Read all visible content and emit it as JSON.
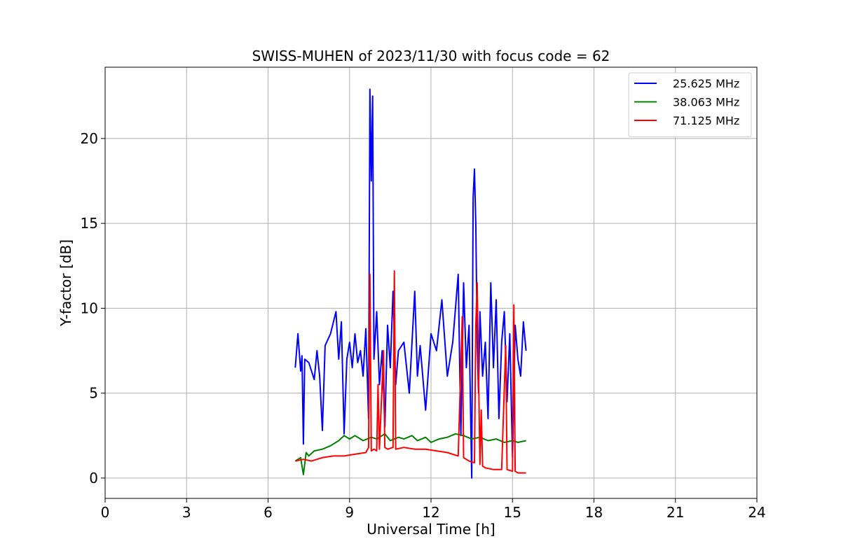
{
  "chart_data": {
    "type": "line",
    "title": "SWISS-MUHEN of 2023/11/30 with focus code = 62",
    "xlabel": "Universal Time [h]",
    "ylabel": "Y-factor [dB]",
    "xlim": [
      0,
      24
    ],
    "ylim": [
      -1.2,
      24.2
    ],
    "xticks": [
      0,
      3,
      6,
      9,
      12,
      15,
      18,
      21,
      24
    ],
    "yticks": [
      0,
      5,
      10,
      15,
      20
    ],
    "grid": true,
    "legend_position": "top-right",
    "series": [
      {
        "name": "25.625 MHz",
        "color": "#0000ff",
        "x": [
          7.0,
          7.1,
          7.2,
          7.25,
          7.3,
          7.35,
          7.5,
          7.7,
          7.8,
          7.9,
          8.0,
          8.1,
          8.3,
          8.5,
          8.6,
          8.7,
          8.8,
          8.9,
          9.0,
          9.1,
          9.2,
          9.3,
          9.4,
          9.5,
          9.6,
          9.7,
          9.75,
          9.8,
          9.85,
          9.9,
          10.0,
          10.1,
          10.2,
          10.3,
          10.4,
          10.5,
          10.6,
          10.7,
          10.8,
          11.0,
          11.2,
          11.4,
          11.5,
          11.6,
          11.8,
          12.0,
          12.2,
          12.4,
          12.6,
          12.8,
          13.0,
          13.1,
          13.2,
          13.3,
          13.4,
          13.5,
          13.55,
          13.6,
          13.65,
          13.7,
          13.75,
          13.8,
          13.9,
          14.0,
          14.1,
          14.2,
          14.3,
          14.4,
          14.5,
          14.6,
          14.7,
          14.8,
          14.9,
          15.0,
          15.1,
          15.2,
          15.3,
          15.4,
          15.5
        ],
        "y": [
          6.5,
          8.5,
          6.3,
          7.2,
          2.0,
          7.0,
          6.8,
          5.8,
          7.5,
          6.0,
          2.8,
          7.8,
          8.5,
          9.8,
          7.0,
          9.2,
          2.6,
          7.0,
          8.0,
          6.5,
          8.5,
          6.8,
          7.5,
          6.0,
          8.8,
          3.5,
          22.9,
          17.5,
          22.5,
          7.0,
          9.8,
          5.5,
          7.5,
          3.0,
          9.0,
          6.5,
          11.0,
          5.5,
          7.5,
          8.0,
          5.0,
          11.0,
          6.0,
          7.8,
          4.0,
          8.5,
          7.5,
          10.5,
          6.0,
          8.0,
          12.0,
          2.5,
          11.5,
          6.5,
          9.0,
          0.0,
          16.5,
          18.2,
          15.0,
          8.0,
          5.0,
          9.8,
          6.0,
          8.0,
          3.5,
          11.5,
          6.5,
          10.5,
          3.5,
          8.0,
          9.8,
          4.5,
          8.5,
          1.2,
          9.0,
          7.0,
          6.0,
          9.2,
          7.5
        ]
      },
      {
        "name": "38.063 MHz",
        "color": "#008000",
        "x": [
          7.0,
          7.2,
          7.3,
          7.4,
          7.5,
          7.7,
          8.0,
          8.3,
          8.6,
          8.8,
          9.0,
          9.2,
          9.5,
          9.8,
          10.0,
          10.3,
          10.5,
          10.8,
          11.0,
          11.3,
          11.5,
          11.8,
          12.0,
          12.3,
          12.6,
          12.9,
          13.2,
          13.5,
          13.8,
          14.1,
          14.4,
          14.7,
          15.0,
          15.2,
          15.5
        ],
        "y": [
          1.0,
          1.2,
          0.2,
          1.5,
          1.3,
          1.6,
          1.7,
          1.9,
          2.2,
          2.5,
          2.3,
          2.5,
          2.2,
          2.4,
          2.3,
          2.6,
          2.2,
          2.4,
          2.3,
          2.5,
          2.2,
          2.4,
          2.1,
          2.3,
          2.4,
          2.6,
          2.5,
          2.3,
          2.4,
          2.2,
          2.3,
          2.1,
          2.2,
          2.1,
          2.2
        ]
      },
      {
        "name": "71.125 MHz",
        "color": "#ff0000",
        "x": [
          7.0,
          7.3,
          7.6,
          8.0,
          8.4,
          8.8,
          9.2,
          9.6,
          9.7,
          9.75,
          9.8,
          9.9,
          10.0,
          10.05,
          10.1,
          10.25,
          10.3,
          10.4,
          10.6,
          10.65,
          10.7,
          11.0,
          11.4,
          11.8,
          12.2,
          12.6,
          13.0,
          13.15,
          13.2,
          13.4,
          13.6,
          13.65,
          13.7,
          13.8,
          13.85,
          13.9,
          14.0,
          14.3,
          14.6,
          14.75,
          14.8,
          15.0,
          15.05,
          15.1,
          15.2,
          15.5
        ],
        "y": [
          1.0,
          1.1,
          1.0,
          1.2,
          1.3,
          1.3,
          1.4,
          1.5,
          1.8,
          12.0,
          1.6,
          1.7,
          1.6,
          5.5,
          1.7,
          7.5,
          1.8,
          1.7,
          1.8,
          12.2,
          1.7,
          1.8,
          1.7,
          1.7,
          1.6,
          1.5,
          1.3,
          9.5,
          1.2,
          1.0,
          0.9,
          9.0,
          11.5,
          0.8,
          4.0,
          0.7,
          0.6,
          0.5,
          0.5,
          7.8,
          0.5,
          0.4,
          10.2,
          0.4,
          0.3,
          0.3
        ]
      }
    ]
  }
}
